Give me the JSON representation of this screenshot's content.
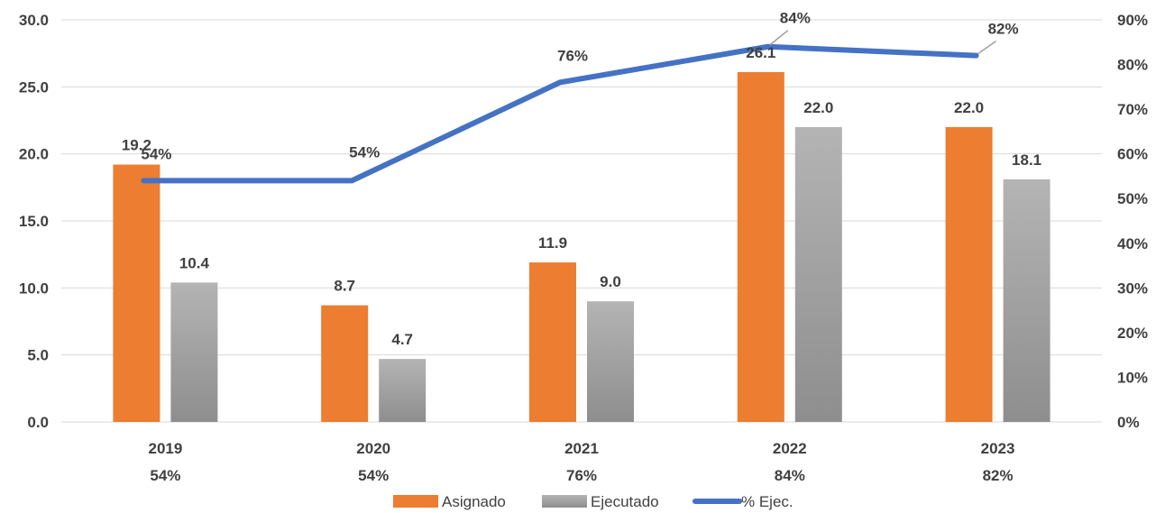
{
  "chart_data": {
    "type": "bar",
    "categories": [
      "2019",
      "2020",
      "2021",
      "2022",
      "2023"
    ],
    "category_sublabels": [
      "54%",
      "54%",
      "76%",
      "84%",
      "82%"
    ],
    "series": [
      {
        "name": "Asignado",
        "kind": "bar",
        "axis": "left",
        "color": "#ED7D31",
        "values": [
          19.2,
          8.7,
          11.9,
          26.1,
          22.0
        ],
        "labels": [
          "19.2",
          "8.7",
          "11.9",
          "26.1",
          "22.0"
        ]
      },
      {
        "name": "Ejecutado",
        "kind": "bar",
        "axis": "left",
        "color": "#A5A5A5",
        "values": [
          10.4,
          4.7,
          9.0,
          22.0,
          18.1
        ],
        "labels": [
          "10.4",
          "4.7",
          "9.0",
          "22.0",
          "18.1"
        ]
      },
      {
        "name": "% Ejec.",
        "kind": "line",
        "axis": "right",
        "color": "#4472C4",
        "values": [
          0.54,
          0.54,
          0.76,
          0.84,
          0.82
        ],
        "labels": [
          "54%",
          "54%",
          "76%",
          "84%",
          "82%"
        ]
      }
    ],
    "y_left": {
      "ylim": [
        0,
        30
      ],
      "ticks": [
        "0.0",
        "5.0",
        "10.0",
        "15.0",
        "20.0",
        "25.0",
        "30.0"
      ]
    },
    "y_right": {
      "ylim": [
        0,
        0.9
      ],
      "ticks": [
        "0%",
        "10%",
        "20%",
        "30%",
        "40%",
        "50%",
        "60%",
        "70%",
        "80%",
        "90%"
      ]
    },
    "grid": true,
    "legend_position": "bottom",
    "title": "",
    "xlabel": "",
    "ylabel": ""
  }
}
